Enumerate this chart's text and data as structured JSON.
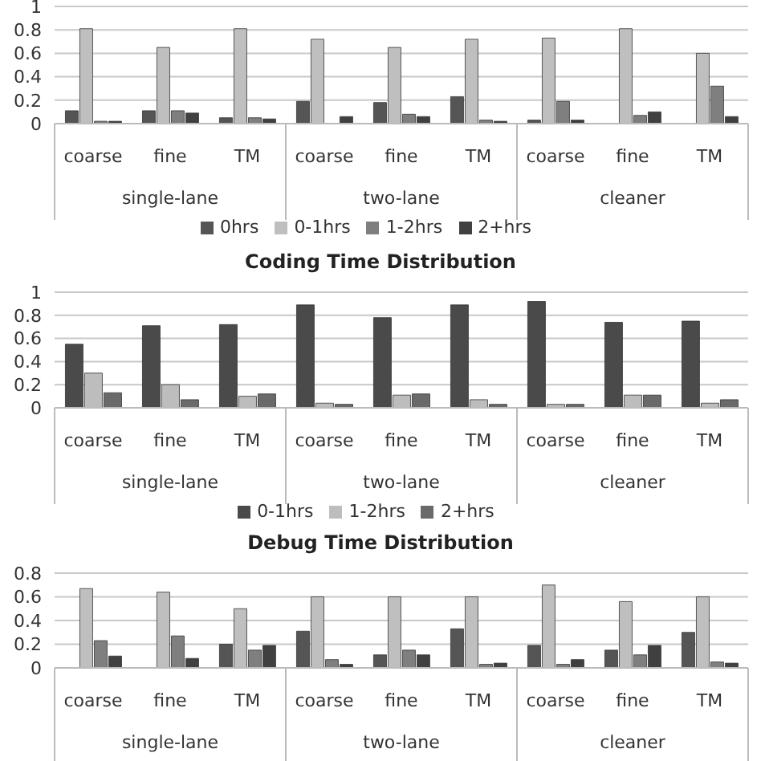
{
  "chart_data": [
    {
      "type": "bar",
      "categories": [
        "coarse",
        "fine",
        "TM",
        "coarse",
        "fine",
        "TM",
        "coarse",
        "fine",
        "TM"
      ],
      "annotations": [
        "single-lane",
        "two-lane",
        "cleaner"
      ],
      "ylim": [
        0,
        1
      ],
      "yticks": [
        0,
        0.2,
        0.4,
        0.6,
        0.8,
        1
      ],
      "grid": "y",
      "legend": "bottom",
      "series": [
        {
          "name": "0hrs",
          "color": "#555555",
          "values": [
            0.11,
            0.11,
            0.05,
            0.19,
            0.18,
            0.23,
            0.03,
            0,
            0
          ]
        },
        {
          "name": "0-1hrs",
          "color": "#bfbfbf",
          "values": [
            0.81,
            0.65,
            0.81,
            0.72,
            0.65,
            0.72,
            0.73,
            0.81,
            0.6
          ]
        },
        {
          "name": "1-2hrs",
          "color": "#7f7f7f",
          "values": [
            0.02,
            0.11,
            0.05,
            0,
            0.08,
            0.03,
            0.19,
            0.07,
            0.32
          ]
        },
        {
          "name": "2+hrs",
          "color": "#404040",
          "values": [
            0.02,
            0.09,
            0.04,
            0.06,
            0.06,
            0.02,
            0.03,
            0.1,
            0.06
          ]
        }
      ]
    },
    {
      "type": "bar",
      "title": "Coding Time Distribution",
      "categories": [
        "coarse",
        "fine",
        "TM",
        "coarse",
        "fine",
        "TM",
        "coarse",
        "fine",
        "TM"
      ],
      "annotations": [
        "single-lane",
        "two-lane",
        "cleaner"
      ],
      "ylim": [
        0,
        1
      ],
      "yticks": [
        0,
        0.2,
        0.4,
        0.6,
        0.8,
        1
      ],
      "grid": "y",
      "legend": "bottom",
      "series": [
        {
          "name": "0-1hrs",
          "color": "#4a4a4a",
          "values": [
            0.55,
            0.71,
            0.72,
            0.89,
            0.78,
            0.89,
            0.92,
            0.74,
            0.75
          ]
        },
        {
          "name": "1-2hrs",
          "color": "#bdbdbd",
          "values": [
            0.3,
            0.2,
            0.1,
            0.04,
            0.11,
            0.07,
            0.03,
            0.11,
            0.04
          ]
        },
        {
          "name": "2+hrs",
          "color": "#6a6a6a",
          "values": [
            0.13,
            0.07,
            0.12,
            0.03,
            0.12,
            0.03,
            0.03,
            0.11,
            0.07
          ]
        }
      ]
    },
    {
      "type": "bar",
      "title": "Debug Time Distribution",
      "categories": [
        "coarse",
        "fine",
        "TM",
        "coarse",
        "fine",
        "TM",
        "coarse",
        "fine",
        "TM"
      ],
      "annotations": [
        "single-lane",
        "two-lane",
        "cleaner"
      ],
      "ylim": [
        0,
        0.8
      ],
      "yticks": [
        0,
        0.2,
        0.4,
        0.6,
        0.8
      ],
      "grid": "y",
      "series": [
        {
          "color": "#555555",
          "values": [
            0,
            0,
            0.2,
            0.31,
            0.11,
            0.33,
            0.19,
            0.15,
            0.3
          ]
        },
        {
          "color": "#bfbfbf",
          "values": [
            0.67,
            0.64,
            0.5,
            0.6,
            0.6,
            0.6,
            0.7,
            0.56,
            0.6
          ]
        },
        {
          "color": "#7f7f7f",
          "values": [
            0.23,
            0.27,
            0.15,
            0.07,
            0.15,
            0.03,
            0.03,
            0.11,
            0.05
          ]
        },
        {
          "color": "#404040",
          "values": [
            0.1,
            0.08,
            0.19,
            0.03,
            0.11,
            0.04,
            0.07,
            0.19,
            0.04
          ]
        }
      ]
    }
  ]
}
